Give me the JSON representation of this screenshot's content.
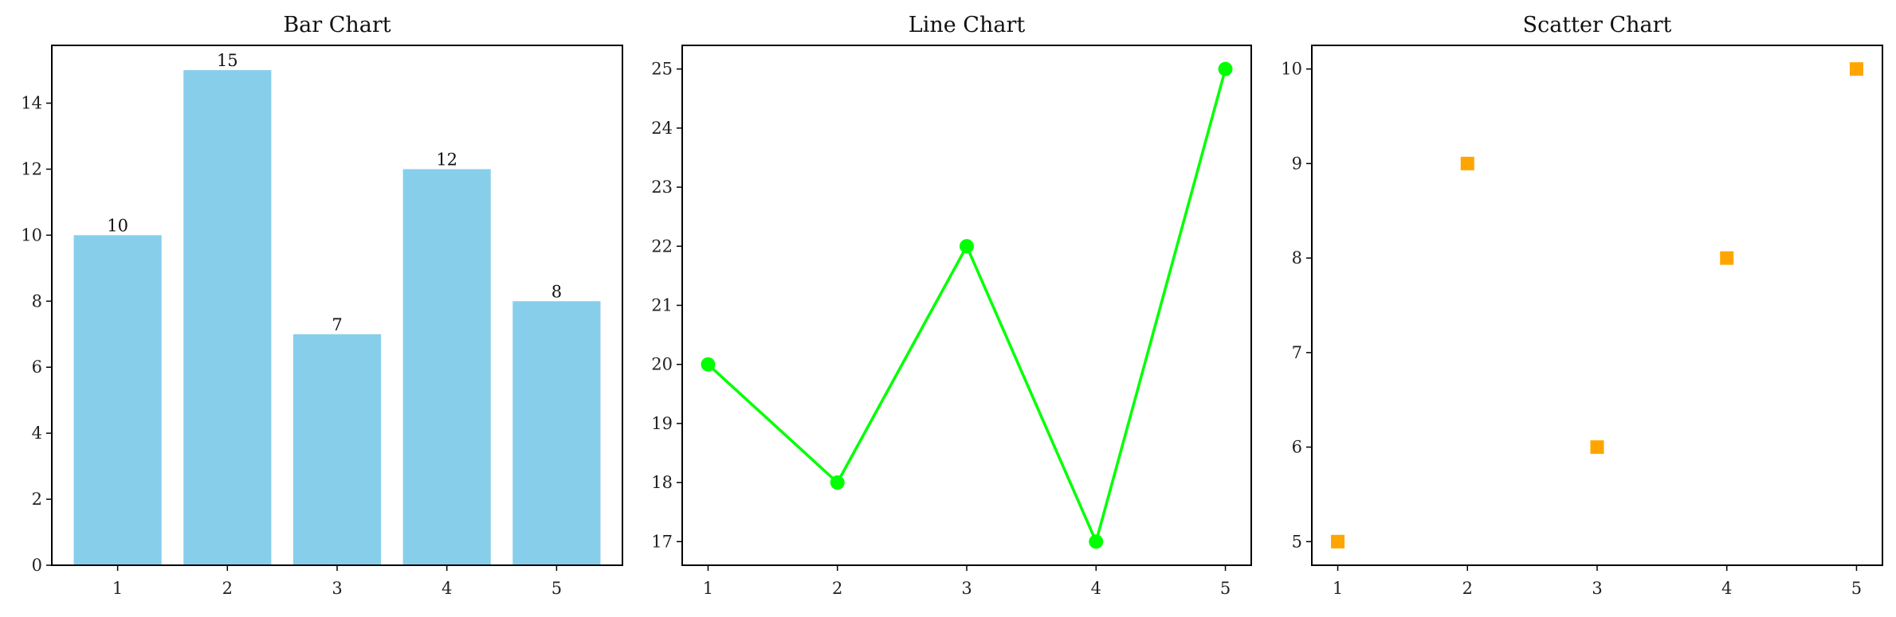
{
  "chart_data": [
    {
      "type": "bar",
      "title": "Bar Chart",
      "categories": [
        "1",
        "2",
        "3",
        "4",
        "5"
      ],
      "values": [
        10,
        15,
        7,
        12,
        8
      ],
      "data_labels": [
        "10",
        "15",
        "7",
        "12",
        "8"
      ],
      "ylim": [
        0,
        15.75
      ],
      "yticks": [
        0,
        2,
        4,
        6,
        8,
        10,
        12,
        14
      ],
      "color": "#87CEEB",
      "grid": false
    },
    {
      "type": "line",
      "title": "Line Chart",
      "x": [
        1,
        2,
        3,
        4,
        5
      ],
      "y": [
        20,
        18,
        22,
        17,
        25
      ],
      "xlim": [
        0.8,
        5.2
      ],
      "ylim": [
        16.6,
        25.4
      ],
      "xticks": [
        1,
        2,
        3,
        4,
        5
      ],
      "yticks": [
        17,
        18,
        19,
        20,
        21,
        22,
        23,
        24,
        25
      ],
      "color": "#00FF00",
      "marker": "circle",
      "grid": false
    },
    {
      "type": "scatter",
      "title": "Scatter Chart",
      "x": [
        1,
        2,
        3,
        4,
        5
      ],
      "y": [
        5,
        9,
        6,
        8,
        10
      ],
      "xlim": [
        0.8,
        5.2
      ],
      "ylim": [
        4.75,
        10.25
      ],
      "xticks": [
        1,
        2,
        3,
        4,
        5
      ],
      "yticks": [
        5,
        6,
        7,
        8,
        9,
        10
      ],
      "color": "#FFA500",
      "marker": "square",
      "grid": false
    }
  ]
}
